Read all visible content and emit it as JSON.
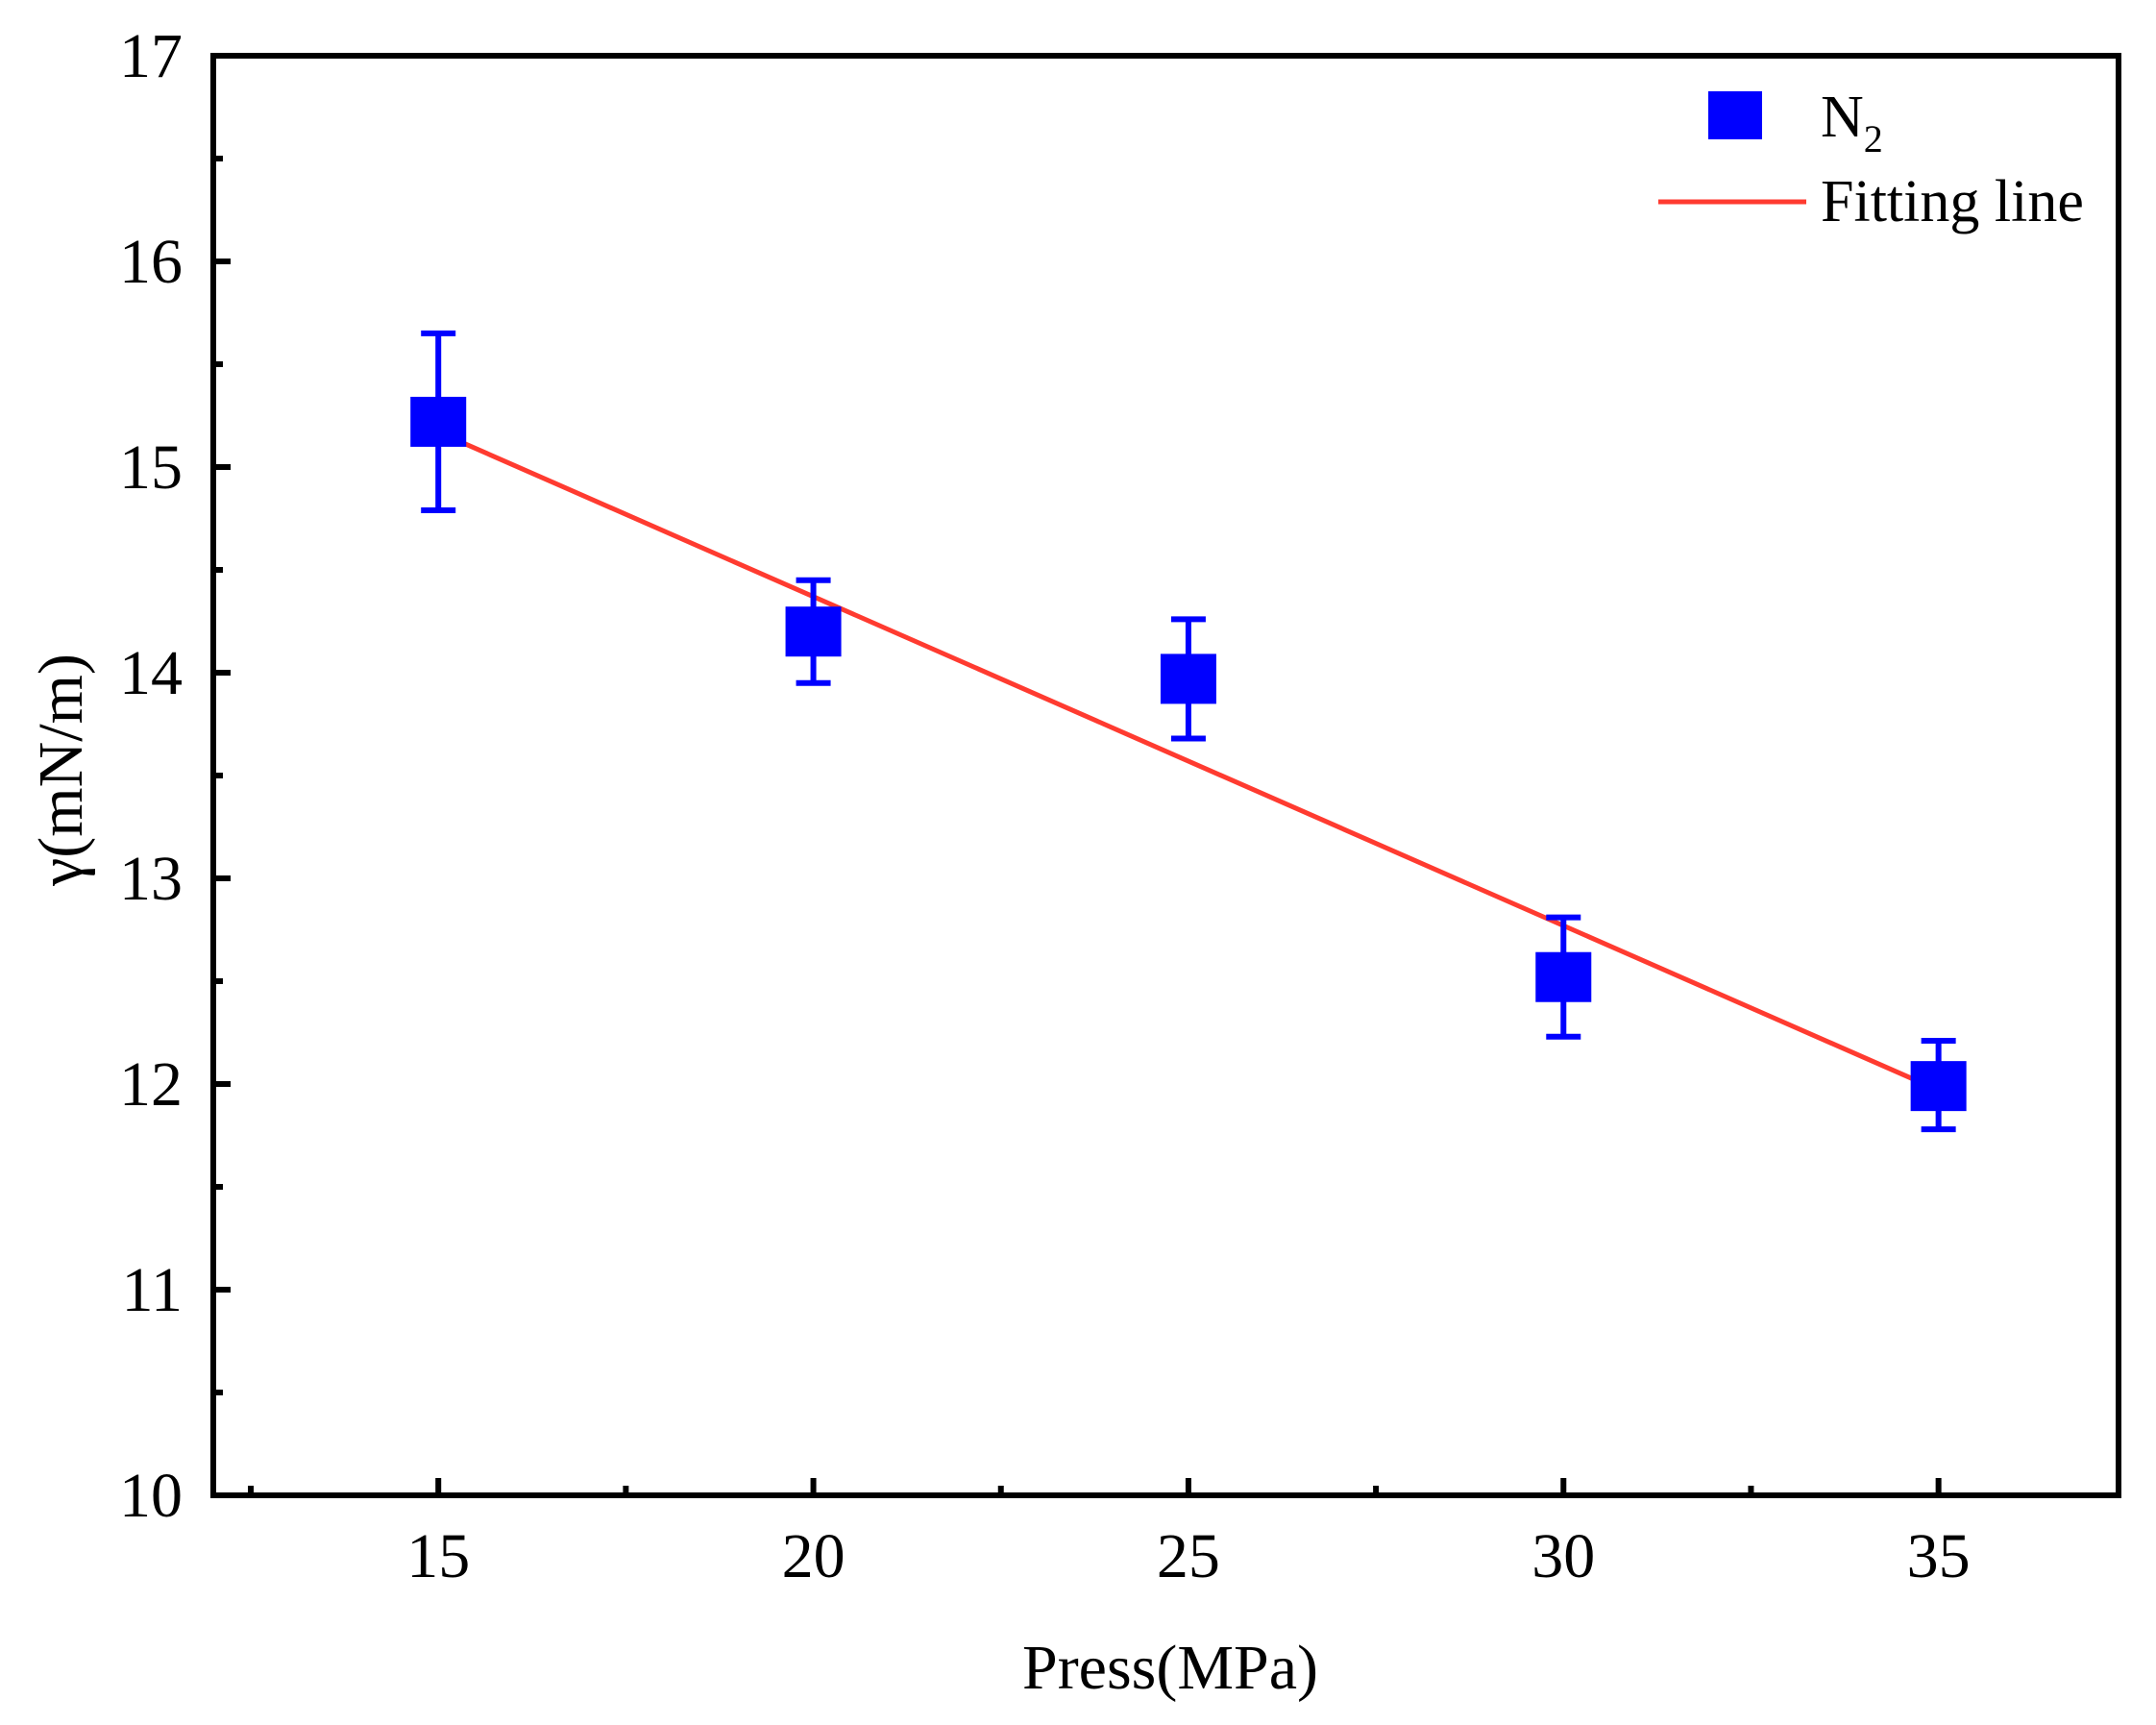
{
  "chart_data": {
    "type": "scatter",
    "title": "",
    "xlabel": "Press(MPa)",
    "ylabel": "γ(mN/m)",
    "xlim": [
      12,
      37.4
    ],
    "ylim": [
      10,
      17
    ],
    "xticks": [
      15,
      20,
      25,
      30,
      35
    ],
    "yticks": [
      10,
      11,
      12,
      13,
      14,
      15,
      16,
      17
    ],
    "x_minor_ticks": [
      12.5,
      17.5,
      22.5,
      27.5,
      32.5
    ],
    "y_minor_ticks": [
      10.5,
      11.5,
      12.5,
      13.5,
      14.5,
      15.5,
      16.5
    ],
    "grid": false,
    "legend_position": "top-right",
    "series": [
      {
        "name": "N",
        "name_subscript": "2",
        "kind": "scatter-errorbar",
        "color": "#0000ff",
        "marker": "square",
        "x": [
          15,
          20,
          25,
          30,
          35
        ],
        "y": [
          15.22,
          14.2,
          13.97,
          12.52,
          11.99
        ],
        "y_err_low": [
          14.79,
          13.95,
          13.68,
          12.23,
          11.78
        ],
        "y_err_high": [
          15.65,
          14.45,
          14.26,
          12.81,
          12.21
        ]
      },
      {
        "name": "Fitting line",
        "kind": "line",
        "color": "#ff3b30",
        "x": [
          15,
          35
        ],
        "y": [
          15.17,
          11.97
        ]
      }
    ]
  }
}
